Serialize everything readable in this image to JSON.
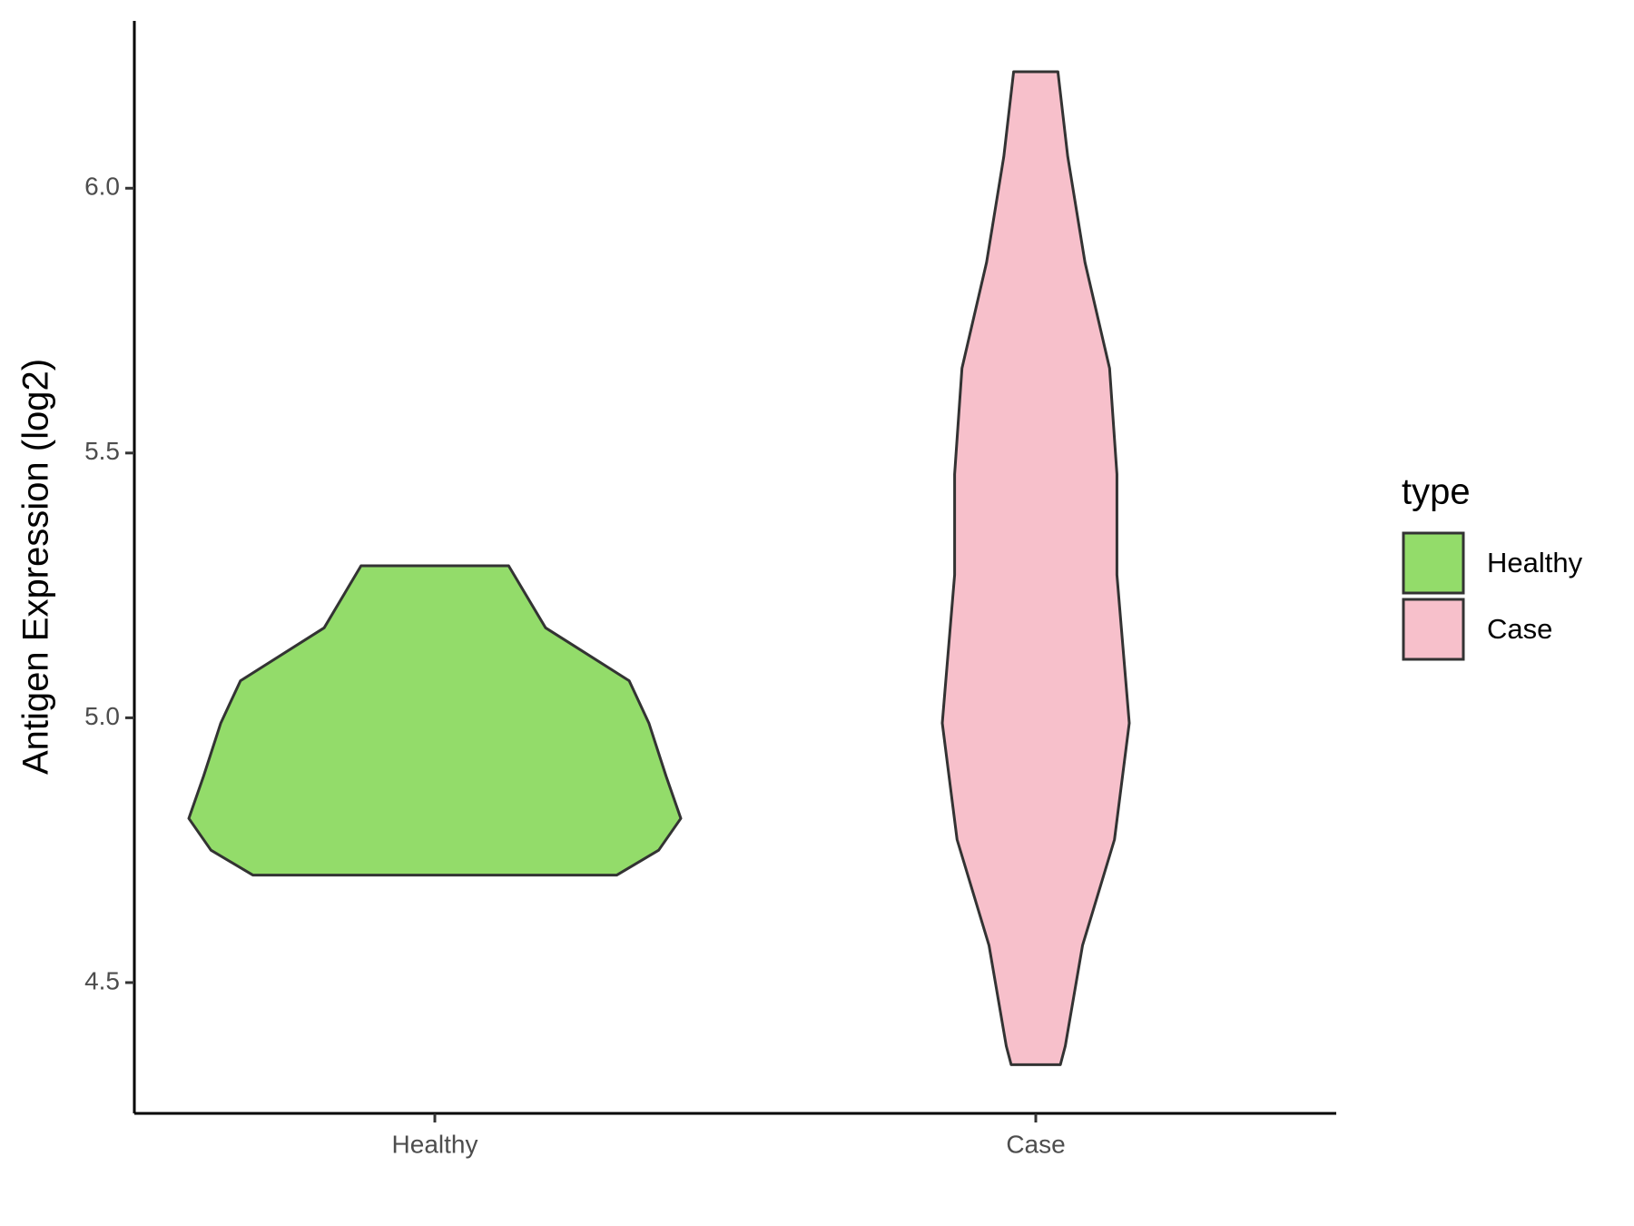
{
  "chart_data": {
    "type": "violin",
    "y_label": "Antigen Expression (log2)",
    "categories": [
      "Healthy",
      "Case"
    ],
    "legend_title": "type",
    "legend_position": "right",
    "series": [
      {
        "name": "Healthy",
        "color": "#93dc6a",
        "y": [
          5.287,
          5.17,
          5.07,
          4.99,
          4.89,
          4.81,
          4.75,
          4.703
        ],
        "density": [
          0.3,
          0.45,
          0.79,
          0.87,
          0.94,
          1.0,
          0.91,
          0.74
        ]
      },
      {
        "name": "Case",
        "color": "#f7c0cb",
        "y": [
          6.22,
          6.06,
          5.86,
          5.66,
          5.46,
          5.27,
          4.99,
          4.77,
          4.57,
          4.38,
          4.345
        ],
        "density": [
          0.09,
          0.13,
          0.2,
          0.3,
          0.33,
          0.33,
          0.38,
          0.32,
          0.19,
          0.12,
          0.1
        ]
      }
    ],
    "ylim": [
      4.253,
      6.316
    ],
    "yticks": [
      4.5,
      {
        "value": 5,
        "label": "5.0"
      },
      5.5,
      {
        "value": 6,
        "label": "6.0"
      }
    ],
    "grid": false
  }
}
